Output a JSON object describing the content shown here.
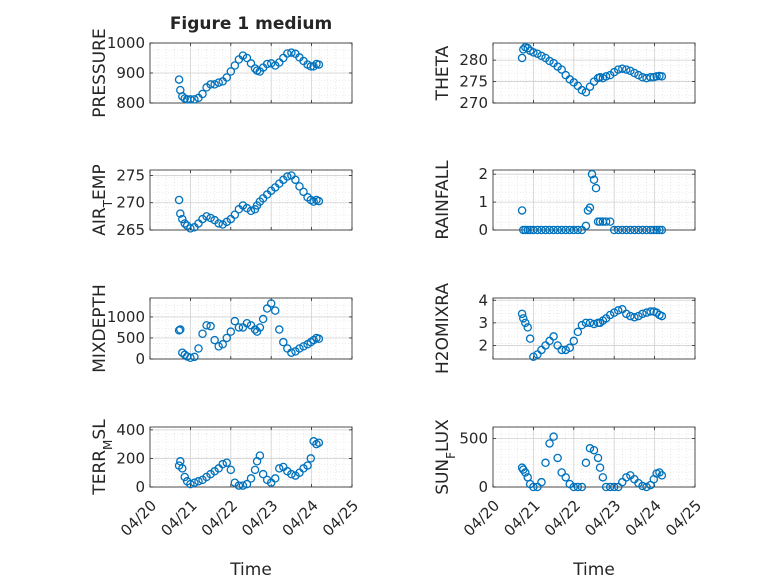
{
  "figure": {
    "title": "Figure 1 medium",
    "xlabel": "Time",
    "x_ticks": [
      "04/20",
      "04/21",
      "04/22",
      "04/23",
      "04/24",
      "04/25"
    ]
  },
  "colors": {
    "marker": "#0072bd",
    "grid": "#dcdcdc",
    "axis": "#262626"
  },
  "chart_data": [
    {
      "type": "scatter",
      "ylabel": "PRESSURE",
      "ylim": [
        800,
        1000
      ],
      "yticks": [
        "800",
        "900",
        "1000"
      ],
      "xlim": [
        "04/20",
        "04/25"
      ],
      "x": [
        0.72,
        0.75,
        0.8,
        0.86,
        0.92,
        1.0,
        1.1,
        1.2,
        1.3,
        1.4,
        1.5,
        1.6,
        1.7,
        1.8,
        1.9,
        2.0,
        2.1,
        2.2,
        2.3,
        2.4,
        2.5,
        2.6,
        2.65,
        2.72,
        2.8,
        2.9,
        3.0,
        3.1,
        3.2,
        3.3,
        3.4,
        3.5,
        3.6,
        3.7,
        3.8,
        3.9,
        3.98,
        4.05,
        4.12,
        4.18
      ],
      "values": [
        878,
        843,
        822,
        815,
        812,
        812,
        812,
        817,
        830,
        852,
        862,
        862,
        868,
        872,
        885,
        905,
        925,
        945,
        958,
        950,
        932,
        915,
        908,
        905,
        918,
        930,
        932,
        925,
        935,
        950,
        965,
        968,
        964,
        952,
        940,
        928,
        922,
        922,
        930,
        928
      ],
      "marker": "circle-open"
    },
    {
      "type": "scatter",
      "ylabel": "THETA",
      "ylim": [
        270,
        284
      ],
      "yticks": [
        "270",
        "275",
        "280"
      ],
      "xlim": [
        "04/20",
        "04/25"
      ],
      "x": [
        0.72,
        0.75,
        0.8,
        0.86,
        0.92,
        1.0,
        1.1,
        1.2,
        1.3,
        1.4,
        1.5,
        1.6,
        1.7,
        1.8,
        1.9,
        2.0,
        2.1,
        2.2,
        2.3,
        2.4,
        2.5,
        2.6,
        2.65,
        2.72,
        2.8,
        2.9,
        3.0,
        3.1,
        3.2,
        3.3,
        3.4,
        3.5,
        3.6,
        3.7,
        3.8,
        3.9,
        3.98,
        4.05,
        4.12,
        4.18
      ],
      "values": [
        280.5,
        282.5,
        283.0,
        282.8,
        282.2,
        281.8,
        281.5,
        281.0,
        280.5,
        279.8,
        279.3,
        278.5,
        277.8,
        276.5,
        275.5,
        274.8,
        274.0,
        273.0,
        272.5,
        273.8,
        275.0,
        275.8,
        276.0,
        275.8,
        276.2,
        276.5,
        277.2,
        277.8,
        278.0,
        277.8,
        277.5,
        277.0,
        276.5,
        276.0,
        275.8,
        276.0,
        276.0,
        276.2,
        276.3,
        276.2
      ],
      "marker": "circle-open"
    },
    {
      "type": "scatter",
      "ylabel": "AIR_TEMP",
      "ylabel_parts": {
        "main": "AIR",
        "sub": "T",
        "rest": "EMP"
      },
      "ylim": [
        265,
        276
      ],
      "yticks": [
        "265",
        "270",
        "275"
      ],
      "xlim": [
        "04/20",
        "04/25"
      ],
      "x": [
        0.72,
        0.75,
        0.8,
        0.86,
        0.92,
        1.0,
        1.1,
        1.2,
        1.3,
        1.4,
        1.5,
        1.6,
        1.7,
        1.8,
        1.9,
        2.0,
        2.1,
        2.2,
        2.3,
        2.4,
        2.5,
        2.6,
        2.65,
        2.72,
        2.8,
        2.9,
        3.0,
        3.1,
        3.2,
        3.3,
        3.4,
        3.5,
        3.6,
        3.7,
        3.8,
        3.9,
        3.98,
        4.05,
        4.12,
        4.18
      ],
      "values": [
        270.5,
        268.0,
        267.0,
        266.2,
        265.8,
        265.3,
        265.5,
        266.2,
        267.0,
        267.5,
        267.2,
        266.8,
        266.2,
        266.0,
        266.5,
        267.0,
        267.8,
        268.8,
        269.5,
        269.0,
        268.5,
        268.8,
        269.5,
        270.2,
        270.8,
        271.5,
        272.2,
        272.8,
        273.5,
        274.2,
        274.8,
        275.0,
        274.2,
        273.0,
        272.0,
        271.0,
        270.5,
        270.2,
        270.5,
        270.3
      ],
      "marker": "circle-open"
    },
    {
      "type": "scatter",
      "ylabel": "RAINFALL",
      "ylim": [
        0,
        2.15
      ],
      "yticks": [
        "0",
        "1",
        "2"
      ],
      "xlim": [
        "04/20",
        "04/25"
      ],
      "x": [
        0.72,
        0.75,
        0.8,
        0.86,
        0.92,
        1.0,
        1.1,
        1.2,
        1.3,
        1.4,
        1.5,
        1.6,
        1.7,
        1.8,
        1.9,
        2.0,
        2.1,
        2.2,
        2.3,
        2.35,
        2.4,
        2.45,
        2.5,
        2.55,
        2.6,
        2.65,
        2.72,
        2.8,
        2.9,
        3.0,
        3.1,
        3.2,
        3.3,
        3.4,
        3.5,
        3.6,
        3.7,
        3.8,
        3.9,
        3.98,
        4.05,
        4.12,
        4.18
      ],
      "values": [
        0.7,
        0,
        0,
        0,
        0,
        0,
        0,
        0,
        0,
        0,
        0,
        0,
        0,
        0,
        0,
        0,
        0,
        0,
        0.15,
        0.7,
        0.8,
        2.0,
        1.8,
        1.5,
        0.3,
        0.3,
        0.3,
        0.3,
        0.3,
        0,
        0,
        0,
        0,
        0,
        0,
        0,
        0,
        0,
        0,
        0,
        0,
        0,
        0
      ],
      "marker": "circle-open"
    },
    {
      "type": "scatter",
      "ylabel": "MIXDEPTH",
      "ylim": [
        0,
        1450
      ],
      "yticks": [
        "0",
        "500",
        "1000"
      ],
      "xlim": [
        "04/20",
        "04/25"
      ],
      "x": [
        0.72,
        0.75,
        0.8,
        0.86,
        0.92,
        1.0,
        1.1,
        1.2,
        1.3,
        1.4,
        1.5,
        1.6,
        1.7,
        1.8,
        1.9,
        2.0,
        2.1,
        2.2,
        2.3,
        2.4,
        2.5,
        2.6,
        2.65,
        2.72,
        2.8,
        2.9,
        3.0,
        3.1,
        3.2,
        3.3,
        3.4,
        3.5,
        3.6,
        3.7,
        3.8,
        3.9,
        3.98,
        4.05,
        4.12,
        4.18
      ],
      "values": [
        680,
        700,
        150,
        100,
        60,
        30,
        50,
        250,
        600,
        800,
        780,
        450,
        300,
        350,
        500,
        650,
        900,
        750,
        750,
        850,
        800,
        700,
        650,
        750,
        950,
        1200,
        1320,
        1150,
        700,
        400,
        250,
        150,
        180,
        250,
        300,
        350,
        400,
        450,
        500,
        480
      ],
      "marker": "circle-open"
    },
    {
      "type": "scatter",
      "ylabel": "H2OMIXRA",
      "ylim": [
        1.4,
        4.1
      ],
      "yticks": [
        "2",
        "3",
        "4"
      ],
      "xlim": [
        "04/20",
        "04/25"
      ],
      "x": [
        0.72,
        0.75,
        0.8,
        0.86,
        0.92,
        1.0,
        1.1,
        1.2,
        1.3,
        1.4,
        1.5,
        1.6,
        1.7,
        1.8,
        1.9,
        2.0,
        2.1,
        2.2,
        2.3,
        2.4,
        2.5,
        2.6,
        2.65,
        2.72,
        2.8,
        2.9,
        3.0,
        3.1,
        3.2,
        3.3,
        3.4,
        3.5,
        3.6,
        3.7,
        3.8,
        3.9,
        3.98,
        4.05,
        4.12,
        4.18
      ],
      "values": [
        3.4,
        3.2,
        3.0,
        2.8,
        2.3,
        1.5,
        1.6,
        1.8,
        2.0,
        2.2,
        2.4,
        2.0,
        1.8,
        1.8,
        1.9,
        2.2,
        2.6,
        2.9,
        3.0,
        3.0,
        2.95,
        3.0,
        3.0,
        3.1,
        3.2,
        3.35,
        3.45,
        3.55,
        3.6,
        3.4,
        3.3,
        3.25,
        3.3,
        3.4,
        3.45,
        3.5,
        3.5,
        3.45,
        3.35,
        3.3
      ],
      "marker": "circle-open"
    },
    {
      "type": "scatter",
      "ylabel": "TERR_MSL",
      "ylabel_parts": {
        "main": "TERR",
        "sub": "M",
        "rest": "SL"
      },
      "ylim": [
        0,
        420
      ],
      "yticks": [
        "0",
        "200",
        "400"
      ],
      "xlim": [
        "04/20",
        "04/25"
      ],
      "x": [
        0.72,
        0.75,
        0.8,
        0.86,
        0.92,
        1.0,
        1.1,
        1.2,
        1.3,
        1.4,
        1.5,
        1.6,
        1.7,
        1.8,
        1.9,
        2.0,
        2.1,
        2.2,
        2.3,
        2.4,
        2.5,
        2.6,
        2.65,
        2.72,
        2.8,
        2.9,
        3.0,
        3.1,
        3.2,
        3.3,
        3.4,
        3.5,
        3.6,
        3.7,
        3.8,
        3.9,
        3.98,
        4.05,
        4.12,
        4.18
      ],
      "values": [
        150,
        180,
        130,
        70,
        40,
        20,
        30,
        40,
        50,
        70,
        90,
        110,
        130,
        160,
        170,
        120,
        30,
        10,
        10,
        20,
        60,
        120,
        180,
        220,
        90,
        50,
        30,
        60,
        130,
        140,
        110,
        90,
        80,
        100,
        130,
        150,
        200,
        320,
        300,
        310
      ],
      "marker": "circle-open"
    },
    {
      "type": "scatter",
      "ylabel": "SUN_FLUX",
      "ylabel_parts": {
        "main": "SUN",
        "sub": "F",
        "rest": "LUX"
      },
      "ylim": [
        0,
        620
      ],
      "yticks": [
        "0",
        "500"
      ],
      "xlim": [
        "04/20",
        "04/25"
      ],
      "x": [
        0.72,
        0.75,
        0.8,
        0.86,
        0.92,
        1.0,
        1.1,
        1.2,
        1.3,
        1.4,
        1.5,
        1.6,
        1.7,
        1.8,
        1.9,
        2.0,
        2.1,
        2.2,
        2.3,
        2.4,
        2.5,
        2.6,
        2.65,
        2.72,
        2.8,
        2.9,
        3.0,
        3.1,
        3.2,
        3.3,
        3.4,
        3.5,
        3.6,
        3.7,
        3.8,
        3.9,
        3.98,
        4.05,
        4.12,
        4.18
      ],
      "values": [
        200,
        180,
        150,
        100,
        30,
        0,
        0,
        50,
        250,
        450,
        520,
        300,
        150,
        100,
        30,
        0,
        0,
        0,
        250,
        400,
        380,
        300,
        200,
        100,
        0,
        0,
        0,
        0,
        50,
        100,
        120,
        80,
        40,
        10,
        0,
        20,
        80,
        140,
        150,
        120
      ],
      "marker": "circle-open"
    }
  ]
}
